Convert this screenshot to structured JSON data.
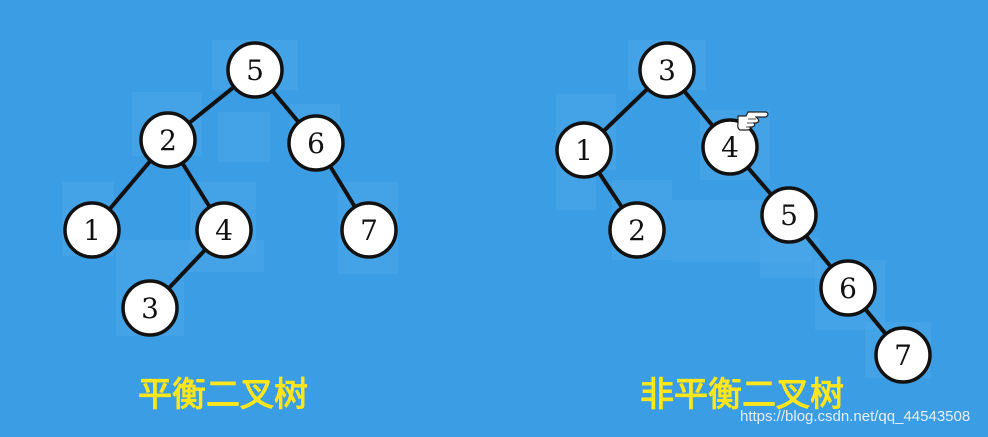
{
  "colors": {
    "background": "#3b9de3",
    "node_fill": "#ffffff",
    "node_stroke": "#111111",
    "edge": "#111111",
    "highlight": "#4aa8ea",
    "caption": "#ffe61a"
  },
  "balanced_tree": {
    "caption": "平衡二叉树",
    "nodes": [
      "5",
      "2",
      "6",
      "1",
      "4",
      "7",
      "3"
    ],
    "edges": [
      [
        "5",
        "2"
      ],
      [
        "5",
        "6"
      ],
      [
        "2",
        "1"
      ],
      [
        "2",
        "4"
      ],
      [
        "6",
        "7"
      ],
      [
        "4",
        "3"
      ]
    ]
  },
  "unbalanced_tree": {
    "caption": "非平衡二叉树",
    "nodes": [
      "3",
      "1",
      "4",
      "2",
      "5",
      "6",
      "7"
    ],
    "edges": [
      [
        "3",
        "1"
      ],
      [
        "3",
        "4"
      ],
      [
        "1",
        "2"
      ],
      [
        "4",
        "5"
      ],
      [
        "5",
        "6"
      ],
      [
        "6",
        "7"
      ]
    ]
  },
  "cursor_icon": "pointing-hand-icon",
  "watermark": "https://blog.csdn.net/qq_44543508"
}
